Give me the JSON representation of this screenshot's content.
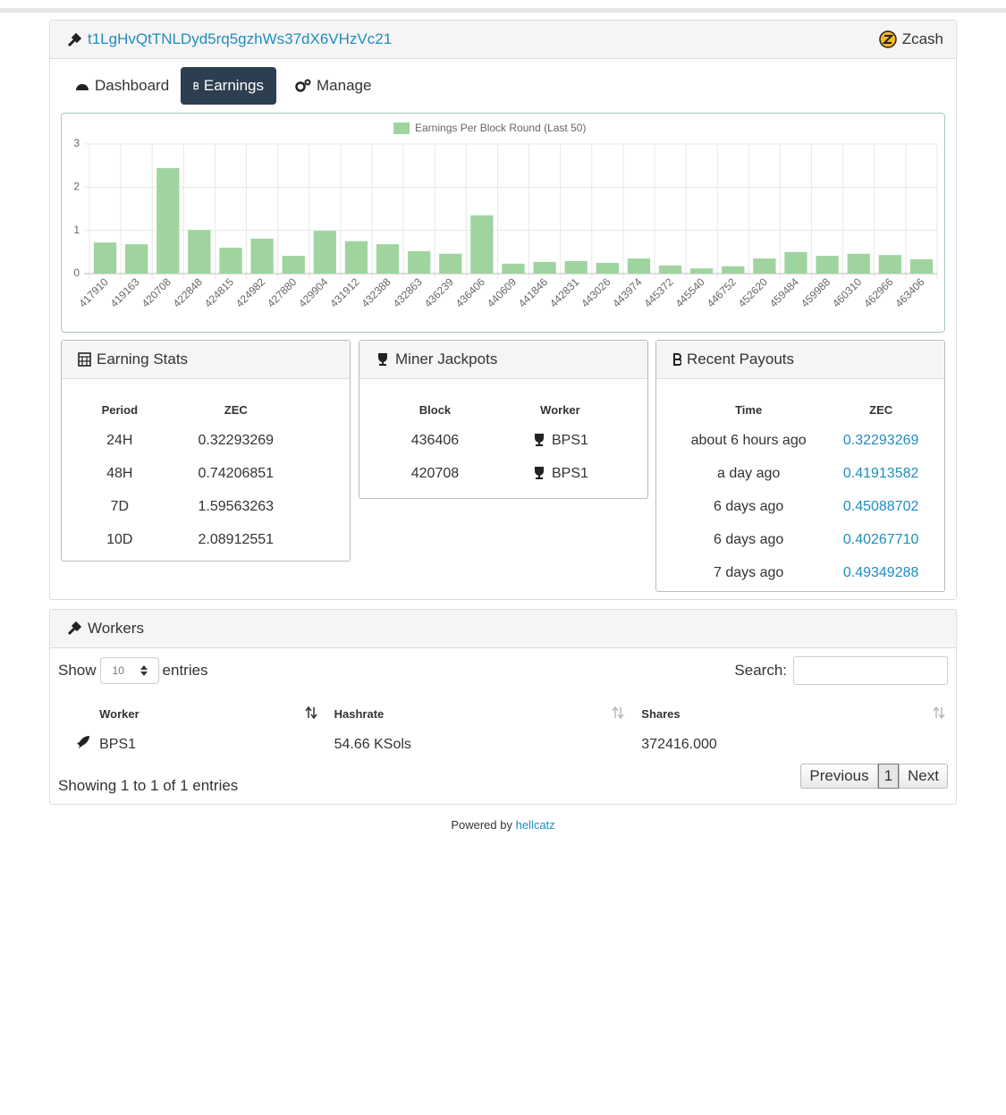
{
  "header": {
    "address": "t1LgHvQtTNLDyd5rq5gzhWs37dX6VHzVc21",
    "coin": "Zcash"
  },
  "tabs": [
    "Dashboard",
    "Earnings",
    "Manage"
  ],
  "chart_data": {
    "type": "bar",
    "categories": [
      "417910",
      "419163",
      "420708",
      "422848",
      "424815",
      "424982",
      "427880",
      "429904",
      "431912",
      "432388",
      "432863",
      "436239",
      "436406",
      "440609",
      "441846",
      "442831",
      "443026",
      "443974",
      "445372",
      "445540",
      "446752",
      "452620",
      "459484",
      "459988",
      "460310",
      "462966",
      "463406"
    ],
    "series": [
      {
        "name": "Earnings Per Block Round (Last 50)",
        "color": "#9fd49f",
        "values": [
          0.72,
          0.68,
          2.44,
          1.01,
          0.6,
          0.81,
          0.41,
          0.99,
          0.75,
          0.68,
          0.52,
          0.46,
          1.35,
          0.23,
          0.27,
          0.29,
          0.25,
          0.35,
          0.19,
          0.12,
          0.17,
          0.35,
          0.5,
          0.41,
          0.46,
          0.43,
          0.33
        ]
      }
    ],
    "ylim": [
      0,
      3
    ],
    "yticks": [
      0,
      1,
      2,
      3
    ],
    "grid": true
  },
  "earning_stats": {
    "title": "Earning Stats",
    "columns": [
      "Period",
      "ZEC"
    ],
    "rows": [
      [
        "24H",
        "0.32293269"
      ],
      [
        "48H",
        "0.74206851"
      ],
      [
        "7D",
        "1.59563263"
      ],
      [
        "10D",
        "2.08912551"
      ]
    ]
  },
  "jackpots": {
    "title": "Miner Jackpots",
    "columns": [
      "Block",
      "Worker"
    ],
    "rows": [
      [
        "436406",
        "BPS1"
      ],
      [
        "420708",
        "BPS1"
      ]
    ]
  },
  "payouts": {
    "title": "Recent Payouts",
    "columns": [
      "Time",
      "ZEC"
    ],
    "rows": [
      [
        "about 6 hours ago",
        "0.32293269"
      ],
      [
        "a day ago",
        "0.41913582"
      ],
      [
        "6 days ago",
        "0.45088702"
      ],
      [
        "6 days ago",
        "0.40267710"
      ],
      [
        "7 days ago",
        "0.49349288"
      ]
    ]
  },
  "workers": {
    "title": "Workers",
    "show": "Show",
    "length": "10",
    "entries": "entries",
    "search": "Search:",
    "columns": [
      "Worker",
      "Hashrate",
      "Shares"
    ],
    "rows": [
      [
        "BPS1",
        "54.66 KSols",
        "372416.000"
      ]
    ],
    "info": "Showing 1 to 1 of 1 entries",
    "pagination": [
      "Previous",
      "1",
      "Next"
    ]
  },
  "footer": {
    "text": "Powered by",
    "link": "hellcatz"
  }
}
